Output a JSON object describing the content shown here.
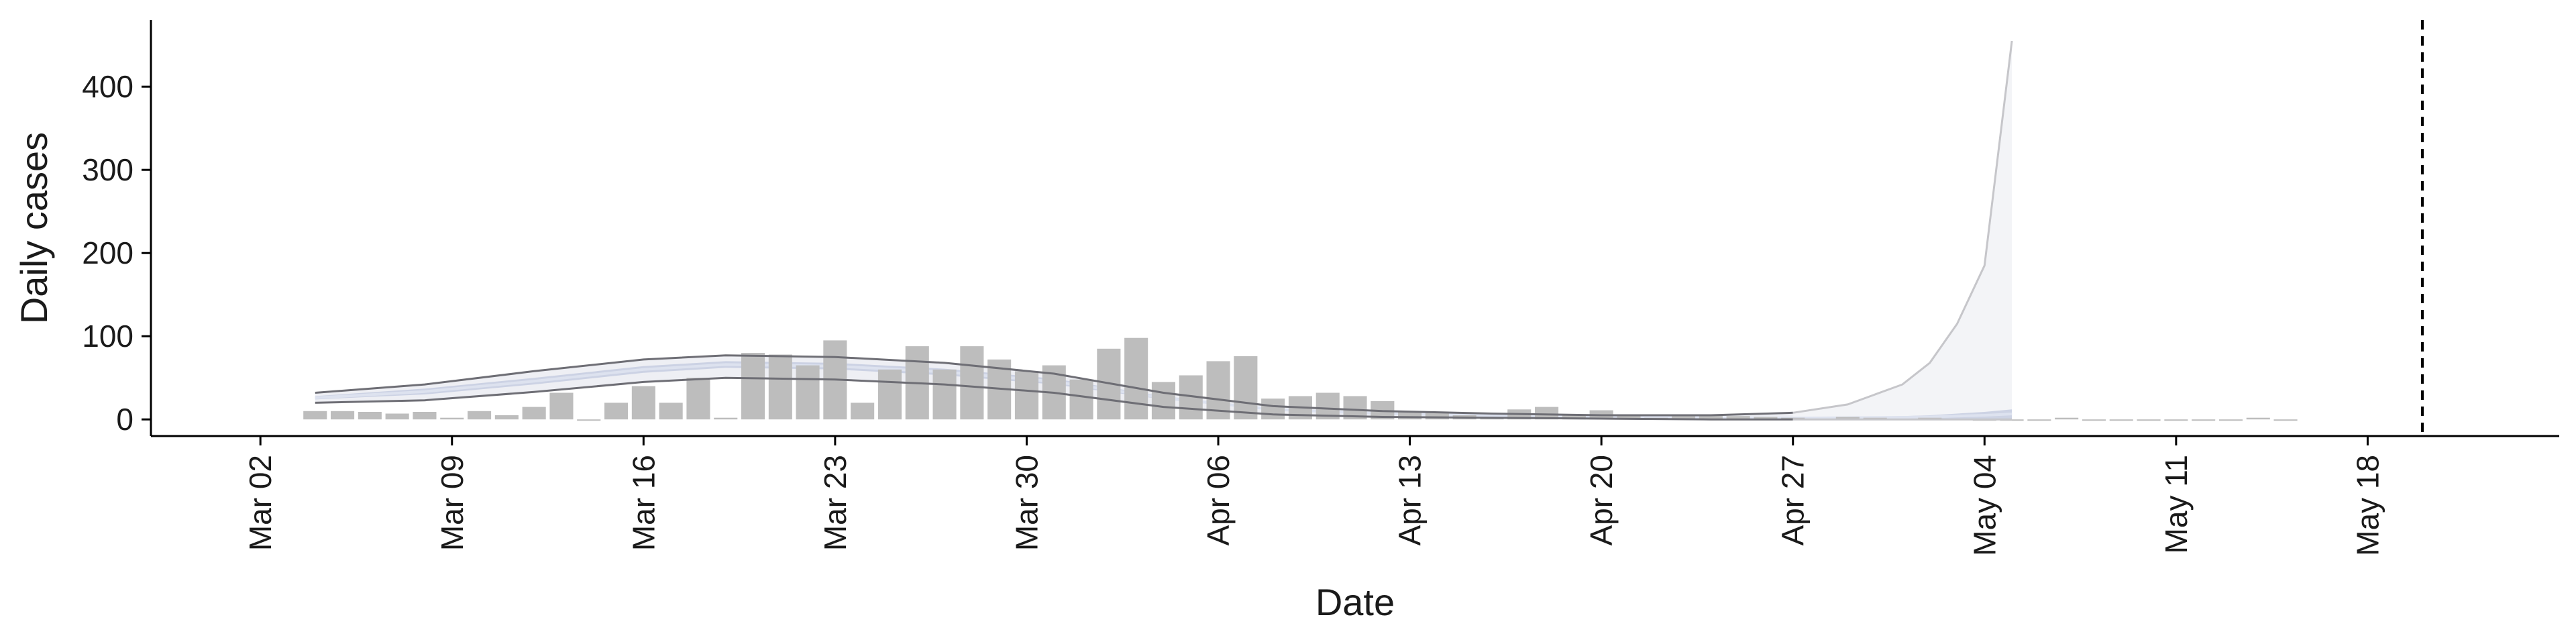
{
  "chart_data": {
    "type": "bar",
    "xlabel": "Date",
    "ylabel": "Daily cases",
    "ylim": [
      -20,
      480
    ],
    "xlim": [
      "2020-02-27",
      "2020-05-25"
    ],
    "y_ticks": [
      0,
      100,
      200,
      300,
      400
    ],
    "x_ticks": [
      {
        "date": "2020-03-02",
        "label": "Mar 02"
      },
      {
        "date": "2020-03-09",
        "label": "Mar 09"
      },
      {
        "date": "2020-03-16",
        "label": "Mar 16"
      },
      {
        "date": "2020-03-23",
        "label": "Mar 23"
      },
      {
        "date": "2020-03-30",
        "label": "Mar 30"
      },
      {
        "date": "2020-04-06",
        "label": "Apr 06"
      },
      {
        "date": "2020-04-13",
        "label": "Apr 13"
      },
      {
        "date": "2020-04-20",
        "label": "Apr 20"
      },
      {
        "date": "2020-04-27",
        "label": "Apr 27"
      },
      {
        "date": "2020-05-04",
        "label": "May 04"
      },
      {
        "date": "2020-05-11",
        "label": "May 11"
      },
      {
        "date": "2020-05-18",
        "label": "May 18"
      }
    ],
    "bar_color": "#bdbdbd",
    "observed_cases": {
      "dates": [
        "2020-03-04",
        "2020-03-05",
        "2020-03-06",
        "2020-03-07",
        "2020-03-08",
        "2020-03-09",
        "2020-03-10",
        "2020-03-11",
        "2020-03-12",
        "2020-03-13",
        "2020-03-14",
        "2020-03-15",
        "2020-03-16",
        "2020-03-17",
        "2020-03-18",
        "2020-03-19",
        "2020-03-20",
        "2020-03-21",
        "2020-03-22",
        "2020-03-23",
        "2020-03-24",
        "2020-03-25",
        "2020-03-26",
        "2020-03-27",
        "2020-03-28",
        "2020-03-29",
        "2020-03-30",
        "2020-03-31",
        "2020-04-01",
        "2020-04-02",
        "2020-04-03",
        "2020-04-04",
        "2020-04-05",
        "2020-04-06",
        "2020-04-07",
        "2020-04-08",
        "2020-04-09",
        "2020-04-10",
        "2020-04-11",
        "2020-04-12",
        "2020-04-13",
        "2020-04-14",
        "2020-04-15",
        "2020-04-16",
        "2020-04-17",
        "2020-04-18",
        "2020-04-19",
        "2020-04-20",
        "2020-04-21",
        "2020-04-22",
        "2020-04-23",
        "2020-04-24",
        "2020-04-25",
        "2020-04-26",
        "2020-04-27",
        "2020-04-28",
        "2020-04-29",
        "2020-04-30",
        "2020-05-01",
        "2020-05-02",
        "2020-05-03",
        "2020-05-04",
        "2020-05-05",
        "2020-05-06",
        "2020-05-07",
        "2020-05-08",
        "2020-05-09",
        "2020-05-10",
        "2020-05-11",
        "2020-05-12",
        "2020-05-13",
        "2020-05-14",
        "2020-05-15"
      ],
      "values": [
        10,
        10,
        9,
        7,
        9,
        2,
        10,
        5,
        15,
        32,
        0,
        20,
        40,
        20,
        50,
        2,
        80,
        78,
        65,
        95,
        20,
        60,
        88,
        60,
        88,
        72,
        58,
        65,
        48,
        85,
        98,
        45,
        53,
        70,
        76,
        25,
        28,
        32,
        28,
        22,
        10,
        8,
        5,
        3,
        12,
        15,
        5,
        11,
        4,
        2,
        4,
        5,
        4,
        3,
        2,
        1,
        3,
        2,
        1,
        2,
        1,
        0,
        0,
        0,
        2,
        0,
        0,
        0,
        0,
        0,
        0,
        2,
        0
      ]
    },
    "estimate_bands": {
      "dates": [
        "2020-03-04",
        "2020-03-08",
        "2020-03-12",
        "2020-03-16",
        "2020-03-19",
        "2020-03-23",
        "2020-03-27",
        "2020-03-31",
        "2020-04-04",
        "2020-04-08",
        "2020-04-12",
        "2020-04-16",
        "2020-04-20",
        "2020-04-24",
        "2020-04-27",
        "2020-04-29",
        "2020-05-01",
        "2020-05-02",
        "2020-05-03",
        "2020-05-04",
        "2020-05-05"
      ],
      "outer_band": {
        "lower": [
          20,
          23,
          33,
          45,
          50,
          48,
          42,
          32,
          15,
          6,
          3,
          2,
          1,
          0,
          0,
          0,
          0,
          0,
          0,
          0,
          0
        ],
        "upper": [
          32,
          42,
          58,
          72,
          77,
          75,
          68,
          55,
          32,
          16,
          10,
          7,
          5,
          5,
          8,
          18,
          42,
          68,
          115,
          185,
          455
        ]
      },
      "inner_band": {
        "lower": [
          24,
          30,
          42,
          56,
          62,
          60,
          53,
          42,
          24,
          11,
          6,
          4,
          3,
          2,
          1,
          1,
          1,
          1,
          1,
          1,
          1
        ],
        "upper": [
          28,
          37,
          50,
          64,
          70,
          68,
          61,
          49,
          28,
          13,
          8,
          5,
          3,
          2,
          2,
          3,
          4,
          5,
          7,
          9,
          12
        ]
      },
      "outer_band_color": "#eeeff4",
      "outer_line_color": "#6e6e75",
      "inner_band_color": "#c5cce0",
      "median_color": "#dde2ef",
      "forecast_outer_color": "#f3f4f7",
      "forecast_line_color": "#c6c6ca",
      "forecast_start": "2020-04-27"
    },
    "vline": {
      "date": "2020-05-20",
      "style": "dashed"
    },
    "grid": false,
    "legend": "none"
  }
}
